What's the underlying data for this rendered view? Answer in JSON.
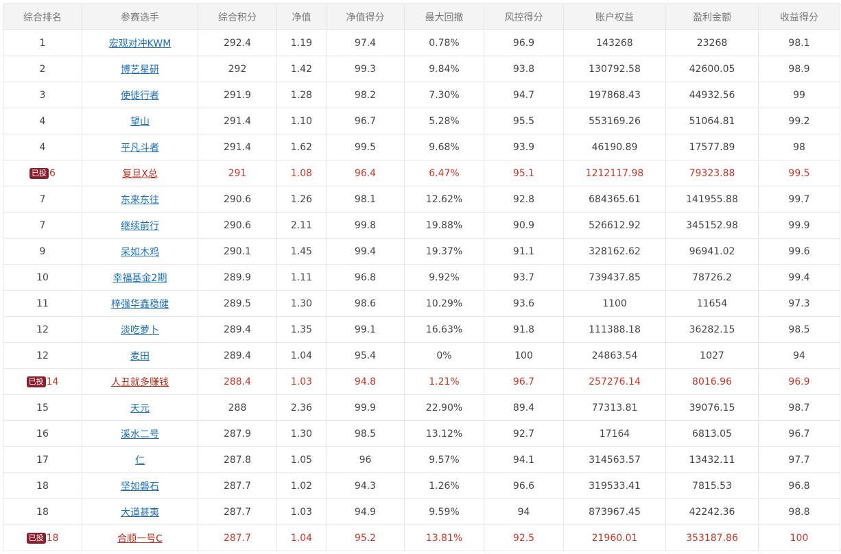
{
  "table": {
    "headers": [
      "综合排名",
      "参赛选手",
      "综合积分",
      "净值",
      "净值得分",
      "最大回撤",
      "风控得分",
      "账户权益",
      "盈利金额",
      "收益得分"
    ],
    "rows": [
      {
        "rank": "1",
        "badge": "",
        "player": "宏观对冲KWM",
        "score": "292.4",
        "nav": "1.19",
        "nav_score": "97.4",
        "max_drawdown": "0.78%",
        "risk_score": "96.9",
        "equity": "143268",
        "profit": "23268",
        "return_score": "98.1",
        "invested": false
      },
      {
        "rank": "2",
        "badge": "",
        "player": "博艺星研",
        "score": "292",
        "nav": "1.42",
        "nav_score": "99.3",
        "max_drawdown": "9.84%",
        "risk_score": "93.8",
        "equity": "130792.58",
        "profit": "42600.05",
        "return_score": "98.9",
        "invested": false
      },
      {
        "rank": "3",
        "badge": "",
        "player": "使徒行者",
        "score": "291.9",
        "nav": "1.28",
        "nav_score": "98.2",
        "max_drawdown": "7.30%",
        "risk_score": "94.7",
        "equity": "197868.43",
        "profit": "44932.56",
        "return_score": "99",
        "invested": false
      },
      {
        "rank": "4",
        "badge": "",
        "player": "望山",
        "score": "291.4",
        "nav": "1.10",
        "nav_score": "96.7",
        "max_drawdown": "5.28%",
        "risk_score": "95.5",
        "equity": "553169.26",
        "profit": "51064.81",
        "return_score": "99.2",
        "invested": false
      },
      {
        "rank": "4",
        "badge": "",
        "player": "平凡斗者",
        "score": "291.4",
        "nav": "1.62",
        "nav_score": "99.5",
        "max_drawdown": "9.68%",
        "risk_score": "93.9",
        "equity": "46190.89",
        "profit": "17577.89",
        "return_score": "98",
        "invested": false
      },
      {
        "rank": "6",
        "badge": "已投",
        "player": "复旦X总",
        "score": "291",
        "nav": "1.08",
        "nav_score": "96.4",
        "max_drawdown": "6.47%",
        "risk_score": "95.1",
        "equity": "1212117.98",
        "profit": "79323.88",
        "return_score": "99.5",
        "invested": true
      },
      {
        "rank": "7",
        "badge": "",
        "player": "东来东往",
        "score": "290.6",
        "nav": "1.26",
        "nav_score": "98.1",
        "max_drawdown": "12.62%",
        "risk_score": "92.8",
        "equity": "684365.61",
        "profit": "141955.88",
        "return_score": "99.7",
        "invested": false
      },
      {
        "rank": "7",
        "badge": "",
        "player": "继续前行",
        "score": "290.6",
        "nav": "2.11",
        "nav_score": "99.8",
        "max_drawdown": "19.88%",
        "risk_score": "90.9",
        "equity": "526612.92",
        "profit": "345152.98",
        "return_score": "99.9",
        "invested": false
      },
      {
        "rank": "9",
        "badge": "",
        "player": "呆如木鸡",
        "score": "290.1",
        "nav": "1.45",
        "nav_score": "99.4",
        "max_drawdown": "19.37%",
        "risk_score": "91.1",
        "equity": "328162.62",
        "profit": "96941.02",
        "return_score": "99.6",
        "invested": false
      },
      {
        "rank": "10",
        "badge": "",
        "player": "幸福基金2期",
        "score": "289.9",
        "nav": "1.11",
        "nav_score": "96.8",
        "max_drawdown": "9.92%",
        "risk_score": "93.7",
        "equity": "739437.85",
        "profit": "78726.2",
        "return_score": "99.4",
        "invested": false
      },
      {
        "rank": "11",
        "badge": "",
        "player": "梓强华鑫稳健",
        "score": "289.5",
        "nav": "1.30",
        "nav_score": "98.6",
        "max_drawdown": "10.29%",
        "risk_score": "93.6",
        "equity": "1100",
        "profit": "11654",
        "return_score": "97.3",
        "invested": false
      },
      {
        "rank": "12",
        "badge": "",
        "player": "淡吃萝卜",
        "score": "289.4",
        "nav": "1.35",
        "nav_score": "99.1",
        "max_drawdown": "16.63%",
        "risk_score": "91.8",
        "equity": "111388.18",
        "profit": "36282.15",
        "return_score": "98.5",
        "invested": false
      },
      {
        "rank": "12",
        "badge": "",
        "player": "麦田",
        "score": "289.4",
        "nav": "1.04",
        "nav_score": "95.4",
        "max_drawdown": "0%",
        "risk_score": "100",
        "equity": "24863.54",
        "profit": "1027",
        "return_score": "94",
        "invested": false
      },
      {
        "rank": "14",
        "badge": "已投",
        "player": "人丑就多赚钱",
        "score": "288.4",
        "nav": "1.03",
        "nav_score": "94.8",
        "max_drawdown": "1.21%",
        "risk_score": "96.7",
        "equity": "257276.14",
        "profit": "8016.96",
        "return_score": "96.9",
        "invested": true
      },
      {
        "rank": "15",
        "badge": "",
        "player": "天元",
        "score": "288",
        "nav": "2.36",
        "nav_score": "99.9",
        "max_drawdown": "22.90%",
        "risk_score": "89.4",
        "equity": "77313.81",
        "profit": "39076.15",
        "return_score": "98.7",
        "invested": false
      },
      {
        "rank": "16",
        "badge": "",
        "player": "溪水二号",
        "score": "287.9",
        "nav": "1.30",
        "nav_score": "98.5",
        "max_drawdown": "13.12%",
        "risk_score": "92.7",
        "equity": "17164",
        "profit": "6813.05",
        "return_score": "96.7",
        "invested": false
      },
      {
        "rank": "17",
        "badge": "",
        "player": "仁",
        "score": "287.8",
        "nav": "1.05",
        "nav_score": "96",
        "max_drawdown": "9.57%",
        "risk_score": "94.1",
        "equity": "314563.57",
        "profit": "13432.11",
        "return_score": "97.7",
        "invested": false
      },
      {
        "rank": "18",
        "badge": "",
        "player": "坚如磐石",
        "score": "287.7",
        "nav": "1.02",
        "nav_score": "94.3",
        "max_drawdown": "1.26%",
        "risk_score": "96.6",
        "equity": "319533.41",
        "profit": "7815.53",
        "return_score": "96.8",
        "invested": false
      },
      {
        "rank": "18",
        "badge": "",
        "player": "大道甚夷",
        "score": "287.7",
        "nav": "1.03",
        "nav_score": "94.9",
        "max_drawdown": "9.59%",
        "risk_score": "94",
        "equity": "873967.45",
        "profit": "42242.36",
        "return_score": "98.8",
        "invested": false
      },
      {
        "rank": "18",
        "badge": "已投",
        "player": "合顺一号C",
        "score": "287.7",
        "nav": "1.04",
        "nav_score": "95.2",
        "max_drawdown": "13.81%",
        "risk_score": "92.5",
        "equity": "21960.01",
        "profit": "353187.86",
        "return_score": "100",
        "invested": true
      }
    ]
  },
  "colors": {
    "header_bg": "#f4f4f4",
    "header_text": "#777777",
    "border": "#e6e6e6",
    "link": "#1f6fb2",
    "invested_text": "#c0392b",
    "badge_bg": "#8a1f2e"
  }
}
